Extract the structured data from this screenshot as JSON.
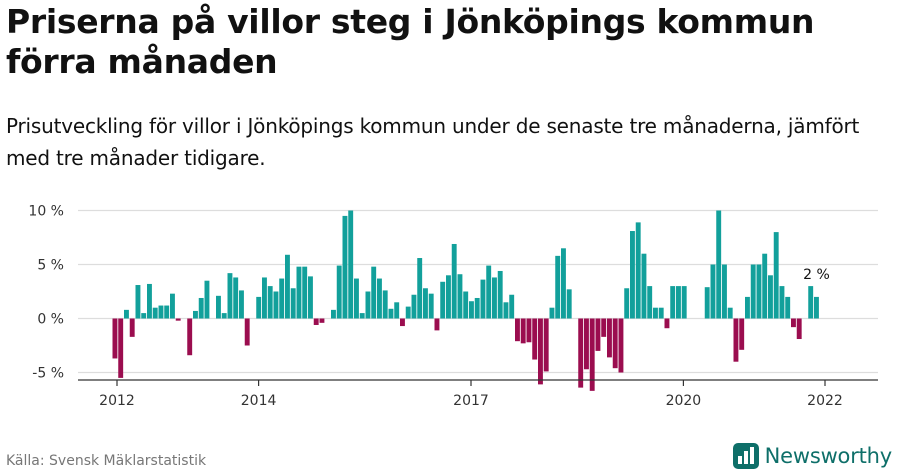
{
  "title": "Priserna på villor steg i Jönköpings kommun förra månaden",
  "subtitle": "Prisutveckling för villor i Jönköpings kommun under de senaste tre månaderna, jämfört med tre månader tidigare.",
  "source": "Källa: Svensk Mäklarstatistik",
  "brand": {
    "name": "Newsworthy",
    "icon": "newsworthy-logo-icon"
  },
  "colors": {
    "positive": "#12a09b",
    "negative": "#9b0d4f",
    "grid": "#dddddd",
    "axis": "#333333"
  },
  "chart_data": {
    "type": "bar",
    "title": "Priserna på villor steg i Jönköpings kommun förra månaden",
    "xlabel": "",
    "ylabel": "",
    "unit": "%",
    "x_start": 2012.0,
    "x_step": 0.0833333,
    "ylim": [
      -7.5,
      10
    ],
    "y_ticks": [
      {
        "value": -5,
        "label": "-5 %"
      },
      {
        "value": 0,
        "label": "0 %"
      },
      {
        "value": 5,
        "label": "5 %"
      },
      {
        "value": 10,
        "label": "10 %"
      }
    ],
    "x_ticks": [
      {
        "value": 2012,
        "label": "2012"
      },
      {
        "value": 2014,
        "label": "2014"
      },
      {
        "value": 2017,
        "label": "2017"
      },
      {
        "value": 2020,
        "label": "2020"
      },
      {
        "value": 2022,
        "label": "2022"
      }
    ],
    "values": [
      -3.7,
      -5.5,
      0.8,
      -1.7,
      3.1,
      0.5,
      3.2,
      1.0,
      1.2,
      1.2,
      2.3,
      -0.2,
      null,
      -3.4,
      0.7,
      1.9,
      3.5,
      0.0,
      2.1,
      0.5,
      4.2,
      3.8,
      2.6,
      -2.5,
      null,
      2.0,
      3.8,
      3.0,
      2.5,
      3.7,
      5.9,
      2.8,
      4.8,
      4.8,
      3.9,
      -0.6,
      -0.4,
      null,
      0.8,
      4.9,
      9.5,
      10.0,
      3.7,
      0.5,
      2.5,
      4.8,
      3.7,
      2.6,
      0.9,
      1.5,
      -0.7,
      1.1,
      2.2,
      5.6,
      2.8,
      2.3,
      -1.1,
      3.4,
      4.0,
      6.9,
      4.1,
      2.5,
      1.6,
      1.9,
      3.6,
      4.9,
      3.8,
      4.4,
      1.5,
      2.2,
      -2.1,
      -2.3,
      -2.2,
      -3.8,
      -6.1,
      -4.9,
      1.0,
      5.8,
      6.5,
      2.7,
      null,
      -6.4,
      -4.7,
      -6.7,
      -3.0,
      -1.7,
      -3.6,
      -4.6,
      -5.0,
      2.8,
      8.1,
      8.9,
      6.0,
      3.0,
      1.0,
      1.0,
      -0.9,
      3.0,
      3.0,
      3.0,
      null,
      null,
      null,
      2.9,
      5.0,
      10.0,
      5.0,
      1.0,
      -4.0,
      -2.9,
      2.0,
      5.0,
      5.0,
      6.0,
      4.0,
      8.0,
      3.0,
      2.0,
      -0.8,
      -1.9,
      null,
      3.0,
      2.0
    ],
    "annotations": [
      {
        "index": 122,
        "text": "2 %"
      }
    ]
  }
}
